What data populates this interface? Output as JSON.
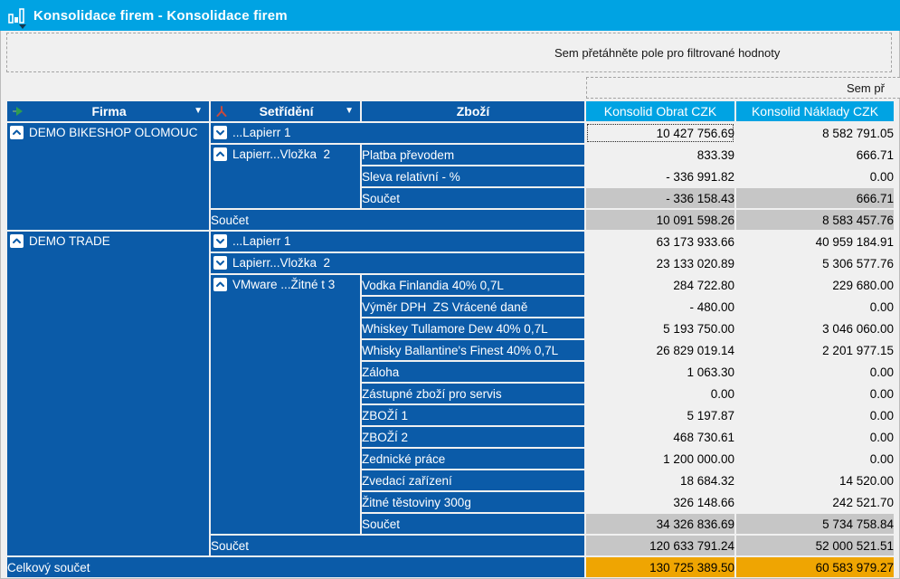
{
  "window": {
    "title": "Konsolidace firem - Konsolidace firem"
  },
  "colors": {
    "titlebar": "#00a3e3",
    "row_header_blue": "#0b5ba8",
    "data_header_cyan": "#00a3e3",
    "cell_bg": "#f0f0f0",
    "subtotal_bg": "#c6c6c6",
    "grand_total_bg": "#efa502"
  },
  "drop_zones": {
    "filter_hint": "Sem přetáhněte pole pro filtrované hodnoty",
    "data_hint_clipped": "Sem př"
  },
  "columns": {
    "firma": "Firma",
    "setrideni": "Setřídění",
    "zbozi": "Zboží",
    "obrat": "Konsolid Obrat CZK",
    "naklady": "Konsolid Náklady CZK"
  },
  "pivot": {
    "rows": [
      {
        "cells": [
          {
            "type": "firma",
            "text": "DEMO BIKESHOP OLOMOUC",
            "icon": "chevron-up",
            "rowspan": 5
          },
          {
            "type": "group",
            "text": "...Lapierr 1",
            "icon": "chevron-down",
            "colspan": 2
          },
          {
            "type": "num",
            "text": "10 427 756.69",
            "selected": true
          },
          {
            "type": "num",
            "text": "8 582 791.05"
          }
        ]
      },
      {
        "cells": [
          {
            "type": "group",
            "text": "Lapierr...Vložka  2",
            "icon": "chevron-up",
            "rowspan": 3
          },
          {
            "type": "item",
            "text": "Platba převodem"
          },
          {
            "type": "num",
            "text": "833.39"
          },
          {
            "type": "num",
            "text": "666.71"
          }
        ]
      },
      {
        "cells": [
          {
            "type": "item",
            "text": "Sleva relativní - %"
          },
          {
            "type": "num",
            "text": "- 336 991.82"
          },
          {
            "type": "num",
            "text": "0.00"
          }
        ]
      },
      {
        "cells": [
          {
            "type": "subitem",
            "text": "Součet"
          },
          {
            "type": "numsub",
            "text": "- 336 158.43"
          },
          {
            "type": "numsub",
            "text": "666.71"
          }
        ]
      },
      {
        "cells": [
          {
            "type": "sublabel",
            "text": "Součet",
            "colspan": 2
          },
          {
            "type": "numsub",
            "text": "10 091 598.26"
          },
          {
            "type": "numsub",
            "text": "8 583 457.76"
          }
        ]
      },
      {
        "cells": [
          {
            "type": "firma",
            "text": "DEMO TRADE",
            "icon": "chevron-up",
            "rowspan": 15
          },
          {
            "type": "group",
            "text": "...Lapierr 1",
            "icon": "chevron-down",
            "colspan": 2
          },
          {
            "type": "num",
            "text": "63 173 933.66"
          },
          {
            "type": "num",
            "text": "40 959 184.91"
          }
        ]
      },
      {
        "cells": [
          {
            "type": "group",
            "text": "Lapierr...Vložka  2",
            "icon": "chevron-down",
            "colspan": 2
          },
          {
            "type": "num",
            "text": "23 133 020.89"
          },
          {
            "type": "num",
            "text": "5 306 577.76"
          }
        ]
      },
      {
        "cells": [
          {
            "type": "group",
            "text": "VMware ...Žitné t 3",
            "icon": "chevron-up",
            "rowspan": 12
          },
          {
            "type": "item",
            "text": "Vodka Finlandia 40% 0,7L"
          },
          {
            "type": "num",
            "text": "284 722.80"
          },
          {
            "type": "num",
            "text": "229 680.00"
          }
        ]
      },
      {
        "cells": [
          {
            "type": "item",
            "text": "Výměr DPH  ZS Vrácené daně"
          },
          {
            "type": "num",
            "text": "- 480.00"
          },
          {
            "type": "num",
            "text": "0.00"
          }
        ]
      },
      {
        "cells": [
          {
            "type": "item",
            "text": "Whiskey Tullamore Dew 40% 0,7L"
          },
          {
            "type": "num",
            "text": "5 193 750.00"
          },
          {
            "type": "num",
            "text": "3 046 060.00"
          }
        ]
      },
      {
        "cells": [
          {
            "type": "item",
            "text": "Whisky Ballantine's Finest 40% 0,7L"
          },
          {
            "type": "num",
            "text": "26 829 019.14"
          },
          {
            "type": "num",
            "text": "2 201 977.15"
          }
        ]
      },
      {
        "cells": [
          {
            "type": "item",
            "text": "Záloha"
          },
          {
            "type": "num",
            "text": "1 063.30"
          },
          {
            "type": "num",
            "text": "0.00"
          }
        ]
      },
      {
        "cells": [
          {
            "type": "item",
            "text": "Zástupné zboží pro servis"
          },
          {
            "type": "num",
            "text": "0.00"
          },
          {
            "type": "num",
            "text": "0.00"
          }
        ]
      },
      {
        "cells": [
          {
            "type": "item",
            "text": "ZBOŽÍ 1"
          },
          {
            "type": "num",
            "text": "5 197.87"
          },
          {
            "type": "num",
            "text": "0.00"
          }
        ]
      },
      {
        "cells": [
          {
            "type": "item",
            "text": "ZBOŽÍ 2"
          },
          {
            "type": "num",
            "text": "468 730.61"
          },
          {
            "type": "num",
            "text": "0.00"
          }
        ]
      },
      {
        "cells": [
          {
            "type": "item",
            "text": "Zednické práce"
          },
          {
            "type": "num",
            "text": "1 200 000.00"
          },
          {
            "type": "num",
            "text": "0.00"
          }
        ]
      },
      {
        "cells": [
          {
            "type": "item",
            "text": "Zvedací zařízení"
          },
          {
            "type": "num",
            "text": "18 684.32"
          },
          {
            "type": "num",
            "text": "14 520.00"
          }
        ]
      },
      {
        "cells": [
          {
            "type": "item",
            "text": "Žitné těstoviny 300g"
          },
          {
            "type": "num",
            "text": "326 148.66"
          },
          {
            "type": "num",
            "text": "242 521.70"
          }
        ]
      },
      {
        "cells": [
          {
            "type": "subitem",
            "text": "Součet"
          },
          {
            "type": "numsub",
            "text": "34 326 836.69"
          },
          {
            "type": "numsub",
            "text": "5 734 758.84"
          }
        ]
      },
      {
        "cells": [
          {
            "type": "sublabel",
            "text": "Součet",
            "colspan": 2
          },
          {
            "type": "numsub",
            "text": "120 633 791.24"
          },
          {
            "type": "numsub",
            "text": "52 000 521.51"
          }
        ]
      },
      {
        "cells": [
          {
            "type": "grandlabel",
            "text": "Celkový součet",
            "colspan": 3
          },
          {
            "type": "numgrand",
            "text": "130 725 389.50"
          },
          {
            "type": "numgrand",
            "text": "60 583 979.27"
          }
        ]
      }
    ]
  }
}
